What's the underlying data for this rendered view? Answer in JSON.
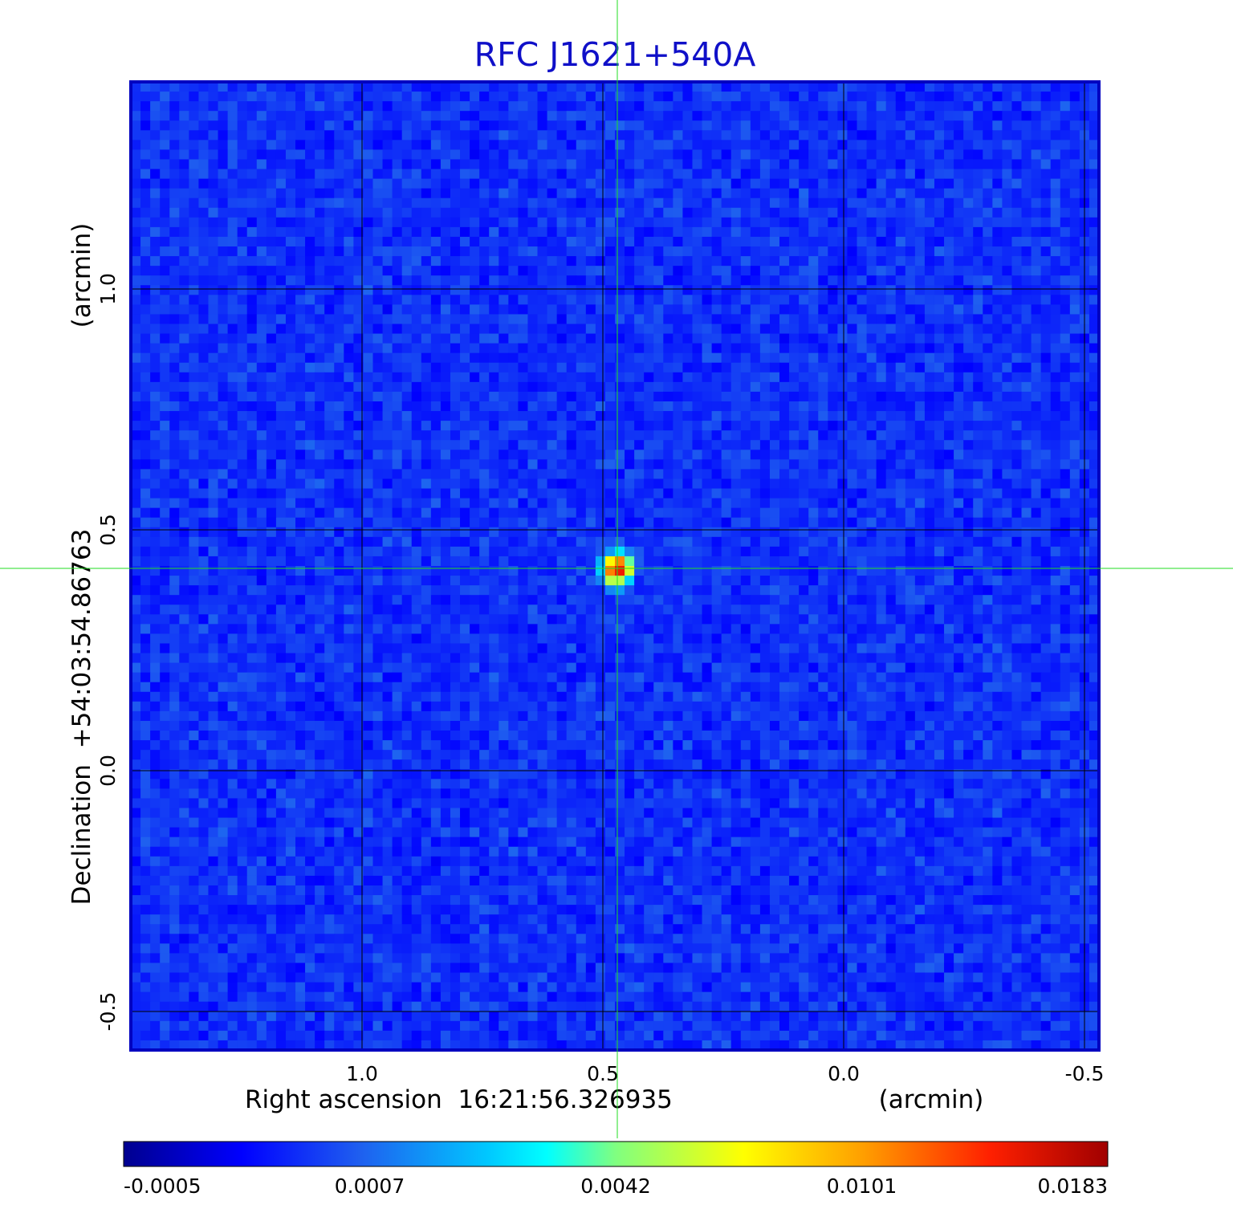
{
  "chart_data": {
    "type": "heatmap",
    "title": "RFC J1621+540A",
    "xlabel": "Right ascension  16:21:56.326935",
    "xunit": "(arcmin)",
    "ylabel": "Declination  +54:03:54.86763",
    "yunit": "(arcmin)",
    "x_ticks": [
      1.0,
      0.5,
      0.0,
      -0.5
    ],
    "x_tick_labels": [
      "1.0",
      "0.5",
      "0.0",
      "-0.5"
    ],
    "y_ticks": [
      1.0,
      0.5,
      0.0,
      -0.5
    ],
    "y_tick_labels": [
      "1.0",
      "0.5",
      "0.0",
      "-0.5"
    ],
    "xlim": [
      1.48,
      -0.53
    ],
    "ylim": [
      -0.58,
      1.43
    ],
    "grid": true,
    "grid_color": "#000000",
    "source": {
      "x": 0.47,
      "y": 0.42,
      "peak": 0.0183,
      "background": -0.0002
    },
    "crosshair": {
      "x": 0.47,
      "y": 0.42,
      "color": "#22dd22"
    },
    "colorbar": {
      "ticks": [
        -0.0005,
        0.0007,
        0.0042,
        0.0101,
        0.0183
      ],
      "tick_labels": [
        "-0.0005",
        "0.0007",
        "0.0042",
        "0.0101",
        "0.0183"
      ],
      "colormap": "jet"
    },
    "colors": {
      "title": "#1010c8",
      "frame": "#0000c0",
      "background_map": "#1f5fef"
    }
  }
}
